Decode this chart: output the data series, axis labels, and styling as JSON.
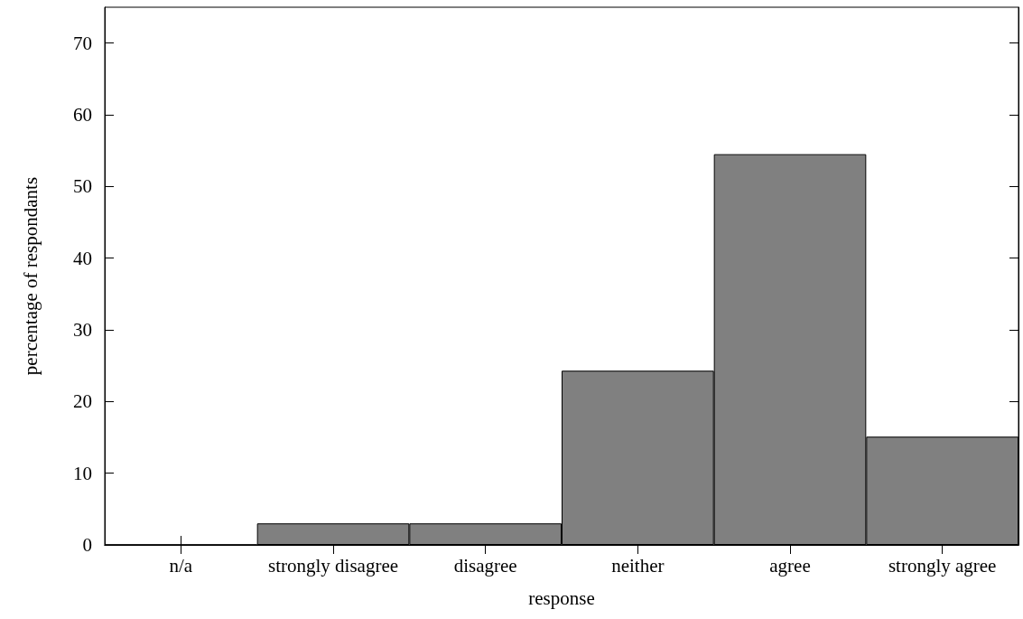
{
  "chart_data": {
    "type": "bar",
    "xlabel": "response",
    "ylabel": "percentage of respondants",
    "categories": [
      "n/a",
      "strongly disagree",
      "disagree",
      "neither",
      "agree",
      "strongly agree"
    ],
    "values": [
      0,
      3.0,
      3.0,
      24.3,
      54.5,
      15.1
    ],
    "color": "#808080",
    "ylim": [
      0,
      75
    ],
    "yticks": [
      0,
      10,
      20,
      30,
      40,
      50,
      60,
      70
    ],
    "grid": false
  }
}
